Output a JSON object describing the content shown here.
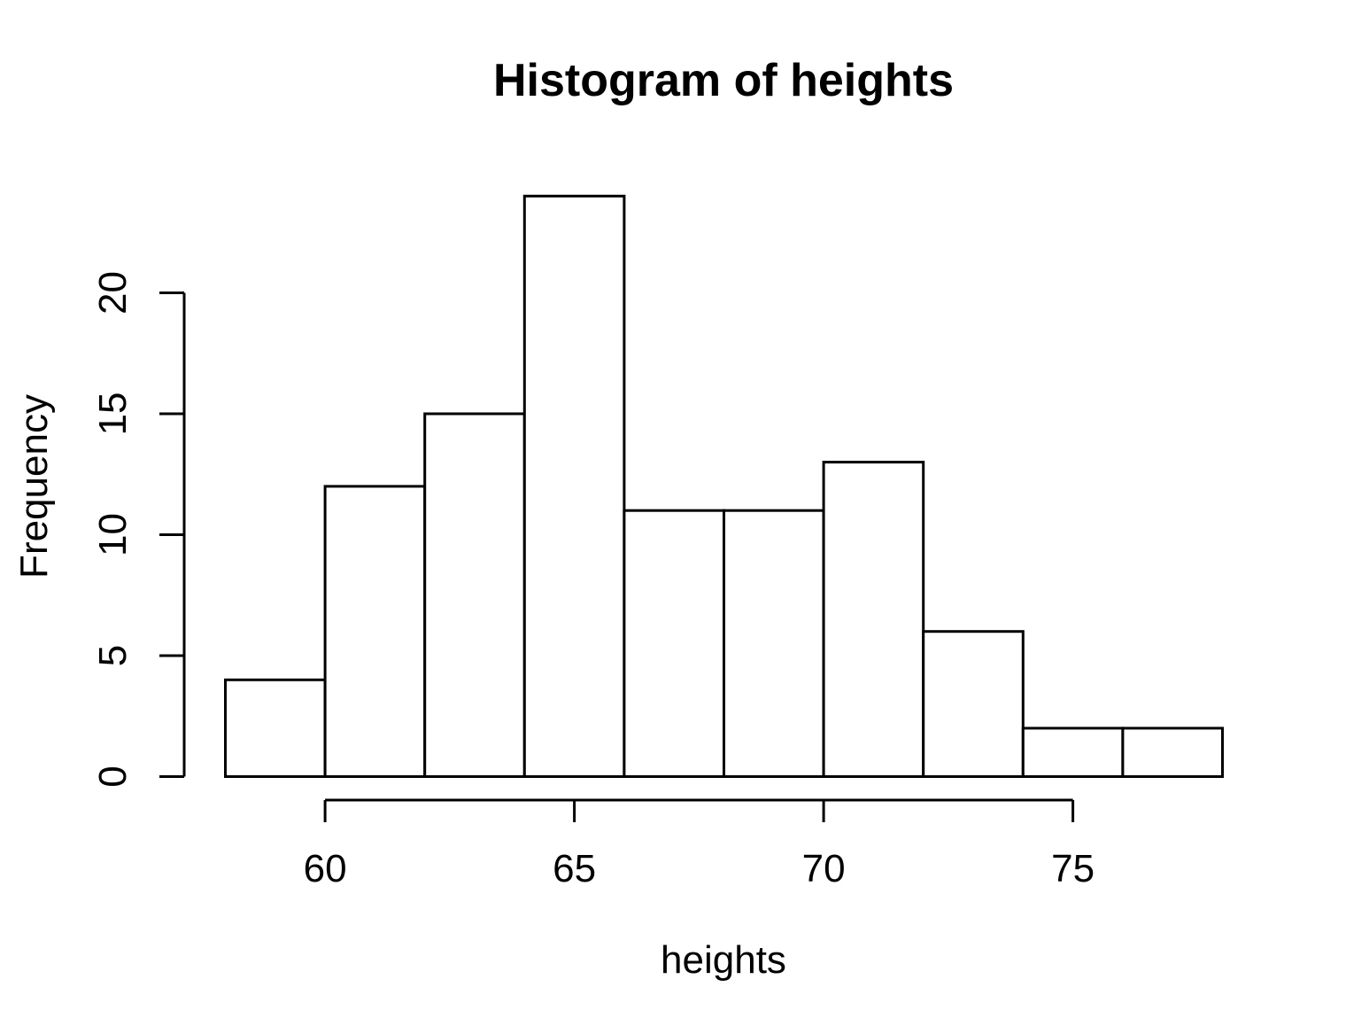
{
  "chart_data": {
    "type": "bar",
    "subtype": "histogram",
    "title": "Histogram of heights",
    "xlabel": "heights",
    "ylabel": "Frequency",
    "bin_edges": [
      58,
      60,
      62,
      64,
      66,
      68,
      70,
      72,
      74,
      76,
      78
    ],
    "counts": [
      4,
      12,
      15,
      24,
      11,
      11,
      13,
      6,
      2,
      2
    ],
    "x_ticks": [
      60,
      65,
      70,
      75
    ],
    "y_ticks": [
      0,
      5,
      10,
      15,
      20
    ],
    "xlim": [
      58,
      78
    ],
    "ylim": [
      0,
      24
    ],
    "grid": false,
    "legend": false,
    "colors": {
      "bar_fill": "#ffffff",
      "bar_stroke": "#000000",
      "axis": "#000000",
      "text": "#000000",
      "background": "#ffffff"
    }
  }
}
